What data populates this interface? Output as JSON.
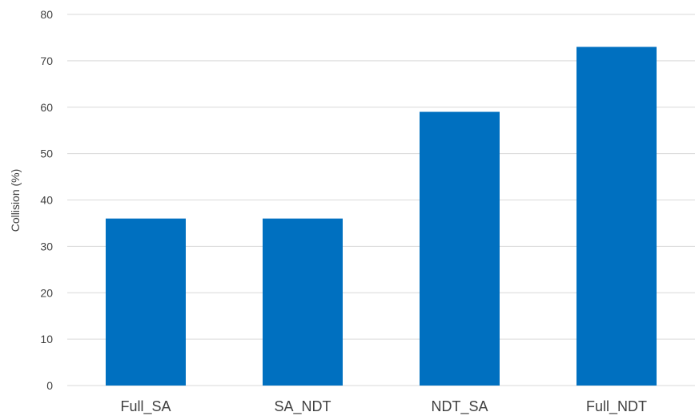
{
  "chart_data": {
    "type": "bar",
    "categories": [
      "Full_SA",
      "SA_NDT",
      "NDT_SA",
      "Full_NDT"
    ],
    "values": [
      36,
      36,
      59,
      73
    ],
    "title": "",
    "xlabel": "",
    "ylabel": "Collision (%)",
    "ylim": [
      0,
      80
    ],
    "yticks": [
      0,
      10,
      20,
      30,
      40,
      50,
      60,
      70,
      80
    ],
    "grid": true,
    "legend": "none",
    "bar_color": "#0070C0",
    "grid_color": "#D9D9D9"
  }
}
